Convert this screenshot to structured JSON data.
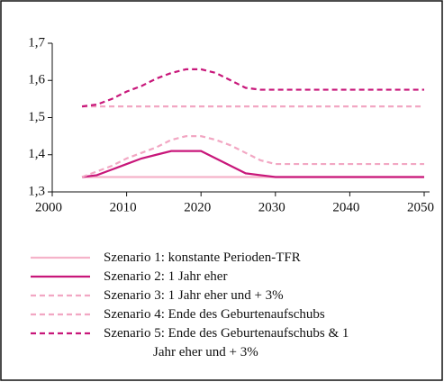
{
  "chart_data": {
    "type": "line",
    "x": [
      2004,
      2006,
      2008,
      2010,
      2012,
      2014,
      2016,
      2018,
      2020,
      2022,
      2024,
      2026,
      2028,
      2030,
      2050
    ],
    "series": [
      {
        "name": "Szenario 1: konstante Perioden-TFR",
        "color": "#f5b3c9",
        "dash": false,
        "values": [
          1.34,
          1.34,
          1.34,
          1.34,
          1.34,
          1.34,
          1.34,
          1.34,
          1.34,
          1.34,
          1.34,
          1.34,
          1.34,
          1.34,
          1.34
        ]
      },
      {
        "name": "Szenario 2: 1 Jahr eher",
        "color": "#c8177a",
        "dash": false,
        "values": [
          1.34,
          1.345,
          1.36,
          1.375,
          1.39,
          1.4,
          1.41,
          1.41,
          1.41,
          1.39,
          1.37,
          1.35,
          1.345,
          1.34,
          1.34
        ]
      },
      {
        "name": "Szenario 3: 1 Jahr eher und + 3%",
        "color": "#f2a7c3",
        "dash": true,
        "values": [
          1.34,
          1.355,
          1.37,
          1.39,
          1.405,
          1.42,
          1.44,
          1.45,
          1.45,
          1.44,
          1.425,
          1.405,
          1.385,
          1.375,
          1.375
        ]
      },
      {
        "name": "Szenario 4: Ende des Geburtenaufschubs",
        "color": "#f2a7c3",
        "dash": true,
        "values": [
          1.53,
          1.53,
          1.53,
          1.53,
          1.53,
          1.53,
          1.53,
          1.53,
          1.53,
          1.53,
          1.53,
          1.53,
          1.53,
          1.53,
          1.53
        ]
      },
      {
        "name": "Szenario 5: Ende des Geburtenaufschubs & 1 Jahr eher und + 3%",
        "color": "#c8177a",
        "dash": true,
        "values": [
          1.53,
          1.535,
          1.55,
          1.57,
          1.585,
          1.605,
          1.62,
          1.63,
          1.63,
          1.62,
          1.6,
          1.58,
          1.575,
          1.575,
          1.575
        ]
      }
    ],
    "xlim": [
      2000,
      2050
    ],
    "xticks": [
      2000,
      2010,
      2020,
      2030,
      2040,
      2050
    ],
    "ylim": [
      1.3,
      1.7
    ],
    "yticks": [
      {
        "value": 1.3,
        "label": "1,3"
      },
      {
        "value": 1.4,
        "label": "1,4"
      },
      {
        "value": 1.5,
        "label": "1,5"
      },
      {
        "value": 1.6,
        "label": "1,6"
      },
      {
        "value": 1.7,
        "label": "1,7"
      }
    ]
  }
}
